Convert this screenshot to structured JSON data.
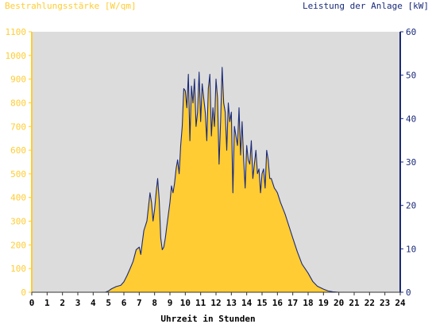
{
  "chart_data": {
    "type": "area",
    "left_axis_title": "Bestrahlungsstärke [W/qm]",
    "right_axis_title": "Leistung der Anlage [kW]",
    "xlabel": "Uhrzeit in Stunden",
    "xlim": [
      0,
      24
    ],
    "ylim_left": [
      0,
      1100
    ],
    "ylim_right": [
      0,
      60
    ],
    "x_ticks": [
      "0",
      "1",
      "2",
      "3",
      "4",
      "5",
      "6",
      "7",
      "8",
      "9",
      "10",
      "11",
      "12",
      "13",
      "14",
      "15",
      "16",
      "17",
      "18",
      "19",
      "20",
      "21",
      "22",
      "23",
      "24"
    ],
    "y_left_ticks": [
      "0",
      "100",
      "200",
      "300",
      "400",
      "500",
      "600",
      "700",
      "800",
      "900",
      "1000",
      "1100"
    ],
    "y_right_ticks": [
      "0",
      "10",
      "20",
      "30",
      "40",
      "50",
      "60"
    ],
    "grid": false,
    "colors": {
      "plot_background": "#dcdcdc",
      "irradiance_fill": "#ffcc33",
      "left_axis": "#ffcc33",
      "power_line": "#1a2a7a",
      "right_axis": "#1a2a7a"
    },
    "series": [
      {
        "name": "Bestrahlungsstärke [W/qm]",
        "axis": "left",
        "style": "area",
        "x": [
          0,
          4.8,
          5.0,
          5.2,
          5.5,
          5.8,
          6.0,
          6.2,
          6.4,
          6.6,
          6.8,
          7.0,
          7.1,
          7.2,
          7.3,
          7.5,
          7.6,
          7.7,
          7.8,
          7.9,
          8.0,
          8.1,
          8.2,
          8.3,
          8.4,
          8.5,
          8.6,
          8.7,
          8.8,
          8.9,
          9.0,
          9.1,
          9.2,
          9.3,
          9.4,
          9.5,
          9.6,
          9.7,
          9.8,
          9.9,
          10.0,
          10.1,
          10.2,
          10.3,
          10.4,
          10.5,
          10.6,
          10.7,
          10.8,
          10.9,
          11.0,
          11.1,
          11.2,
          11.3,
          11.4,
          11.5,
          11.6,
          11.7,
          11.8,
          11.9,
          12.0,
          12.1,
          12.2,
          12.3,
          12.4,
          12.5,
          12.6,
          12.7,
          12.8,
          12.9,
          13.0,
          13.1,
          13.2,
          13.3,
          13.4,
          13.5,
          13.6,
          13.7,
          13.8,
          13.9,
          14.0,
          14.1,
          14.2,
          14.3,
          14.4,
          14.5,
          14.6,
          14.7,
          14.8,
          14.9,
          15.0,
          15.1,
          15.2,
          15.3,
          15.4,
          15.5,
          15.6,
          15.7,
          15.8,
          15.9,
          16.0,
          16.2,
          16.5,
          16.8,
          17.0,
          17.3,
          17.6,
          18.0,
          18.3,
          18.6,
          19.0,
          19.3,
          19.6,
          20.0,
          20.3,
          20.6,
          21,
          24
        ],
        "values": [
          0,
          0,
          5,
          15,
          25,
          30,
          45,
          70,
          100,
          130,
          180,
          190,
          160,
          210,
          260,
          300,
          360,
          420,
          380,
          300,
          350,
          420,
          480,
          390,
          230,
          180,
          190,
          230,
          280,
          330,
          380,
          450,
          420,
          460,
          520,
          560,
          500,
          620,
          700,
          860,
          850,
          780,
          920,
          640,
          870,
          800,
          900,
          700,
          760,
          930,
          720,
          880,
          820,
          760,
          640,
          860,
          920,
          660,
          780,
          700,
          900,
          820,
          540,
          720,
          950,
          800,
          760,
          600,
          800,
          720,
          760,
          420,
          700,
          660,
          620,
          780,
          580,
          720,
          560,
          440,
          620,
          560,
          540,
          640,
          480,
          540,
          600,
          500,
          520,
          420,
          500,
          520,
          440,
          600,
          560,
          480,
          480,
          460,
          440,
          430,
          420,
          380,
          330,
          270,
          230,
          170,
          120,
          80,
          45,
          25,
          12,
          5,
          2,
          0,
          0,
          0,
          0,
          0
        ]
      },
      {
        "name": "Leistung der Anlage [kW]",
        "axis": "right",
        "style": "line",
        "x": [
          0,
          4.8,
          5.0,
          5.2,
          5.5,
          5.8,
          6.0,
          6.2,
          6.4,
          6.6,
          6.8,
          7.0,
          7.1,
          7.2,
          7.3,
          7.5,
          7.6,
          7.7,
          7.8,
          7.9,
          8.0,
          8.1,
          8.2,
          8.3,
          8.4,
          8.5,
          8.6,
          8.7,
          8.8,
          8.9,
          9.0,
          9.1,
          9.2,
          9.3,
          9.4,
          9.5,
          9.6,
          9.7,
          9.8,
          9.9,
          10.0,
          10.1,
          10.2,
          10.3,
          10.4,
          10.5,
          10.6,
          10.7,
          10.8,
          10.9,
          11.0,
          11.1,
          11.2,
          11.3,
          11.4,
          11.5,
          11.6,
          11.7,
          11.8,
          11.9,
          12.0,
          12.1,
          12.2,
          12.3,
          12.4,
          12.5,
          12.6,
          12.7,
          12.8,
          12.9,
          13.0,
          13.1,
          13.2,
          13.3,
          13.4,
          13.5,
          13.6,
          13.7,
          13.8,
          13.9,
          14.0,
          14.1,
          14.2,
          14.3,
          14.4,
          14.5,
          14.6,
          14.7,
          14.8,
          14.9,
          15.0,
          15.1,
          15.2,
          15.3,
          15.4,
          15.5,
          15.6,
          15.7,
          15.8,
          15.9,
          16.0,
          16.2,
          16.5,
          16.8,
          17.0,
          17.3,
          17.6,
          18.0,
          18.3,
          18.6,
          19.0,
          19.3,
          19.6,
          20.0,
          20.3,
          20.6,
          21,
          24
        ],
        "values": [
          0,
          0,
          0.3,
          0.8,
          1.3,
          1.6,
          2.4,
          3.8,
          5.4,
          7.1,
          9.8,
          10.4,
          8.7,
          11.5,
          14.2,
          16.4,
          19.6,
          22.9,
          20.7,
          16.4,
          19.1,
          22.9,
          26.2,
          21.3,
          12.5,
          9.8,
          10.4,
          12.5,
          15.3,
          18.0,
          20.7,
          24.5,
          22.9,
          25.1,
          28.4,
          30.5,
          27.3,
          33.8,
          38.2,
          46.9,
          46.4,
          42.5,
          50.2,
          34.9,
          47.5,
          43.6,
          49.1,
          38.2,
          41.5,
          50.7,
          39.3,
          48.0,
          44.7,
          41.5,
          34.9,
          46.9,
          50.2,
          36.0,
          42.5,
          38.2,
          49.1,
          44.7,
          29.5,
          39.3,
          51.8,
          43.6,
          41.5,
          32.7,
          43.6,
          39.3,
          41.5,
          22.9,
          38.2,
          36.0,
          33.8,
          42.5,
          31.6,
          39.3,
          30.5,
          24.0,
          33.8,
          30.5,
          29.5,
          34.9,
          26.2,
          29.5,
          32.7,
          27.3,
          28.4,
          22.9,
          27.3,
          28.4,
          24.0,
          32.7,
          30.5,
          26.2,
          26.2,
          25.1,
          24.0,
          23.5,
          22.9,
          20.7,
          18.0,
          14.7,
          12.5,
          9.3,
          6.5,
          4.4,
          2.5,
          1.4,
          0.7,
          0.3,
          0.1,
          0,
          0,
          0,
          0,
          0
        ]
      }
    ]
  }
}
